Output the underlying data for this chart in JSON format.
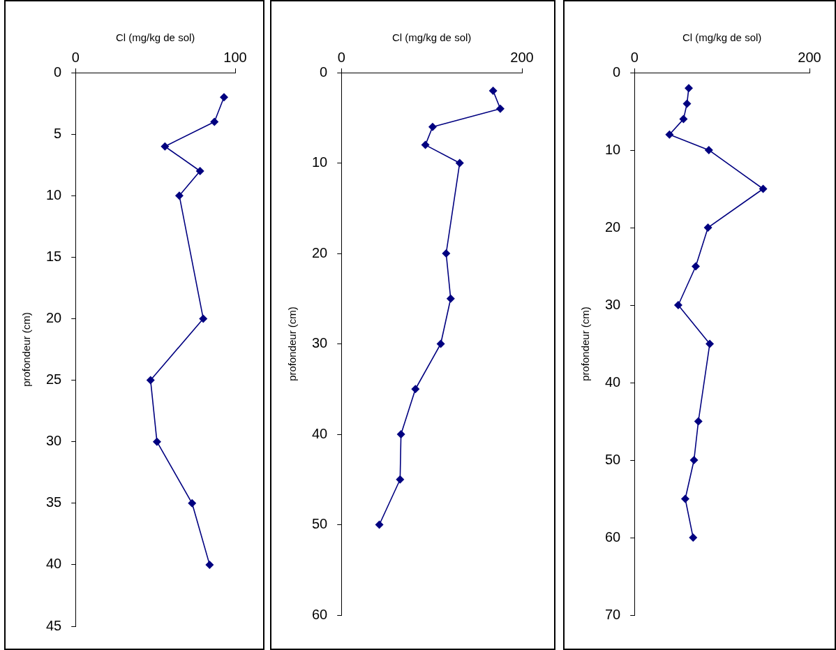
{
  "chart_data": [
    {
      "type": "line",
      "xlabel": "Cl (mg/kg de sol)",
      "ylabel": "profondeur (cm)",
      "xlim": [
        0,
        100
      ],
      "xticks": [
        0,
        100
      ],
      "ylim": [
        45,
        0
      ],
      "yticks": [
        0,
        5,
        10,
        15,
        20,
        25,
        30,
        35,
        40,
        45
      ],
      "grid": false,
      "legend": false,
      "marker": "diamond",
      "line_style": "solid",
      "series": [
        {
          "color": "#000080",
          "x": [
            93,
            87,
            56,
            78,
            65,
            80,
            47,
            51,
            73,
            84
          ],
          "values": [
            2,
            4,
            6,
            8,
            10,
            20,
            25,
            30,
            35,
            40
          ]
        }
      ]
    },
    {
      "type": "line",
      "xlabel": "Cl (mg/kg de sol)",
      "ylabel": "profondeur (cm)",
      "xlim": [
        0,
        200
      ],
      "xticks": [
        0,
        200
      ],
      "ylim": [
        60,
        0
      ],
      "yticks": [
        0,
        10,
        20,
        30,
        40,
        50,
        60
      ],
      "grid": false,
      "legend": false,
      "marker": "diamond",
      "line_style": "solid",
      "series": [
        {
          "color": "#000080",
          "x": [
            168,
            176,
            101,
            93,
            131,
            116,
            121,
            110,
            82,
            66,
            65,
            42
          ],
          "values": [
            2,
            4,
            6,
            8,
            10,
            20,
            25,
            30,
            35,
            40,
            45,
            50
          ]
        }
      ]
    },
    {
      "type": "line",
      "xlabel": "Cl (mg/kg de sol)",
      "ylabel": "profondeur (cm)",
      "xlim": [
        0,
        200
      ],
      "xticks": [
        0,
        200
      ],
      "ylim": [
        70,
        0
      ],
      "yticks": [
        0,
        10,
        20,
        30,
        40,
        50,
        60,
        70
      ],
      "grid": false,
      "legend": false,
      "marker": "diamond",
      "line_style": "solid",
      "series": [
        {
          "color": "#000080",
          "x": [
            62,
            60,
            56,
            40,
            85,
            147,
            84,
            70,
            50,
            86,
            73,
            68,
            58,
            67
          ],
          "values": [
            2,
            4,
            6,
            8,
            10,
            15,
            20,
            25,
            30,
            35,
            45,
            50,
            55,
            60
          ]
        }
      ]
    }
  ]
}
